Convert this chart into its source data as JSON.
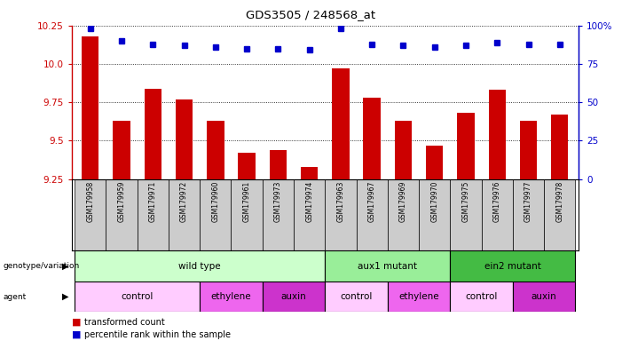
{
  "title": "GDS3505 / 248568_at",
  "samples": [
    "GSM179958",
    "GSM179959",
    "GSM179971",
    "GSM179972",
    "GSM179960",
    "GSM179961",
    "GSM179973",
    "GSM179974",
    "GSM179963",
    "GSM179967",
    "GSM179969",
    "GSM179970",
    "GSM179975",
    "GSM179976",
    "GSM179977",
    "GSM179978"
  ],
  "transformed_counts": [
    10.18,
    9.63,
    9.84,
    9.77,
    9.63,
    9.42,
    9.44,
    9.33,
    9.97,
    9.78,
    9.63,
    9.47,
    9.68,
    9.83,
    9.63,
    9.67
  ],
  "percentile_ranks": [
    98,
    90,
    88,
    87,
    86,
    85,
    85,
    84,
    98,
    88,
    87,
    86,
    87,
    89,
    88,
    88
  ],
  "y_min": 9.25,
  "y_max": 10.25,
  "y_ticks": [
    9.25,
    9.5,
    9.75,
    10.0,
    10.25
  ],
  "y2_ticks": [
    0,
    25,
    50,
    75,
    100
  ],
  "bar_color": "#cc0000",
  "dot_color": "#0000cc",
  "groups": [
    {
      "label": "wild type",
      "start": 0,
      "end": 8,
      "color": "#ccffcc"
    },
    {
      "label": "aux1 mutant",
      "start": 8,
      "end": 12,
      "color": "#99ee99"
    },
    {
      "label": "ein2 mutant",
      "start": 12,
      "end": 16,
      "color": "#44bb44"
    }
  ],
  "agents": [
    {
      "label": "control",
      "start": 0,
      "end": 4,
      "color": "#ffccff"
    },
    {
      "label": "ethylene",
      "start": 4,
      "end": 6,
      "color": "#ee66ee"
    },
    {
      "label": "auxin",
      "start": 6,
      "end": 8,
      "color": "#cc33cc"
    },
    {
      "label": "control",
      "start": 8,
      "end": 10,
      "color": "#ffccff"
    },
    {
      "label": "ethylene",
      "start": 10,
      "end": 12,
      "color": "#ee66ee"
    },
    {
      "label": "control",
      "start": 12,
      "end": 14,
      "color": "#ffccff"
    },
    {
      "label": "auxin",
      "start": 14,
      "end": 16,
      "color": "#cc33cc"
    }
  ]
}
